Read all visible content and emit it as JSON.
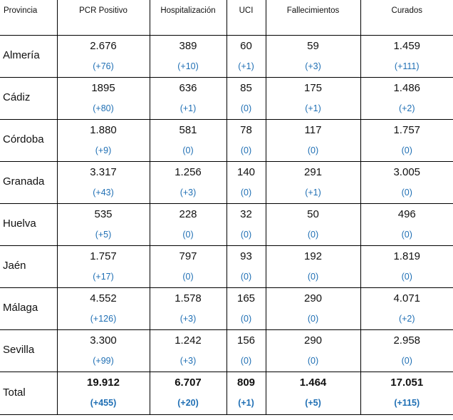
{
  "headers": {
    "provincia": "Provincia",
    "pcr": "PCR Positivo",
    "hosp": "Hospitalización",
    "uci": "UCI",
    "fall": "Fallecimientos",
    "curados": "Curados"
  },
  "rows": [
    {
      "provincia": "Almería",
      "pcr": "2.676",
      "pcr_delta": "(+76)",
      "hosp": "389",
      "hosp_delta": "(+10)",
      "uci": "60",
      "uci_delta": "(+1)",
      "fall": "59",
      "fall_delta": "(+3)",
      "curados": "1.459",
      "curados_delta": "(+111)"
    },
    {
      "provincia": "Cádiz",
      "pcr": "1895",
      "pcr_delta": "(+80)",
      "hosp": "636",
      "hosp_delta": "(+1)",
      "uci": "85",
      "uci_delta": "(0)",
      "fall": "175",
      "fall_delta": "(+1)",
      "curados": "1.486",
      "curados_delta": "(+2)"
    },
    {
      "provincia": "Córdoba",
      "pcr": "1.880",
      "pcr_delta": "(+9)",
      "hosp": "581",
      "hosp_delta": "(0)",
      "uci": "78",
      "uci_delta": "(0)",
      "fall": "117",
      "fall_delta": "(0)",
      "curados": "1.757",
      "curados_delta": "(0)"
    },
    {
      "provincia": "Granada",
      "pcr": "3.317",
      "pcr_delta": "(+43)",
      "hosp": "1.256",
      "hosp_delta": "(+3)",
      "uci": "140",
      "uci_delta": "(0)",
      "fall": "291",
      "fall_delta": "(+1)",
      "curados": "3.005",
      "curados_delta": "(0)"
    },
    {
      "provincia": "Huelva",
      "pcr": "535",
      "pcr_delta": "(+5)",
      "hosp": "228",
      "hosp_delta": "(0)",
      "uci": "32",
      "uci_delta": "(0)",
      "fall": "50",
      "fall_delta": "(0)",
      "curados": "496",
      "curados_delta": "(0)"
    },
    {
      "provincia": "Jaén",
      "pcr": "1.757",
      "pcr_delta": "(+17)",
      "hosp": "797",
      "hosp_delta": "(0)",
      "uci": "93",
      "uci_delta": "(0)",
      "fall": "192",
      "fall_delta": "(0)",
      "curados": "1.819",
      "curados_delta": "(0)"
    },
    {
      "provincia": "Málaga",
      "pcr": "4.552",
      "pcr_delta": "(+126)",
      "hosp": "1.578",
      "hosp_delta": "(+3)",
      "uci": "165",
      "uci_delta": "(0)",
      "fall": "290",
      "fall_delta": "(0)",
      "curados": "4.071",
      "curados_delta": "(+2)"
    },
    {
      "provincia": "Sevilla",
      "pcr": "3.300",
      "pcr_delta": "(+99)",
      "hosp": "1.242",
      "hosp_delta": "(+3)",
      "uci": "156",
      "uci_delta": "(0)",
      "fall": "290",
      "fall_delta": "(0)",
      "curados": "2.958",
      "curados_delta": "(0)"
    }
  ],
  "total": {
    "provincia": "Total",
    "pcr": "19.912",
    "pcr_delta": "(+455)",
    "hosp": "6.707",
    "hosp_delta": "(+20)",
    "uci": "809",
    "uci_delta": "(+1)",
    "fall": "1.464",
    "fall_delta": "(+5)",
    "curados": "17.051",
    "curados_delta": "(+115)"
  },
  "colors": {
    "delta_text": "#1f6fb4",
    "border": "#000000",
    "text": "#111111"
  }
}
